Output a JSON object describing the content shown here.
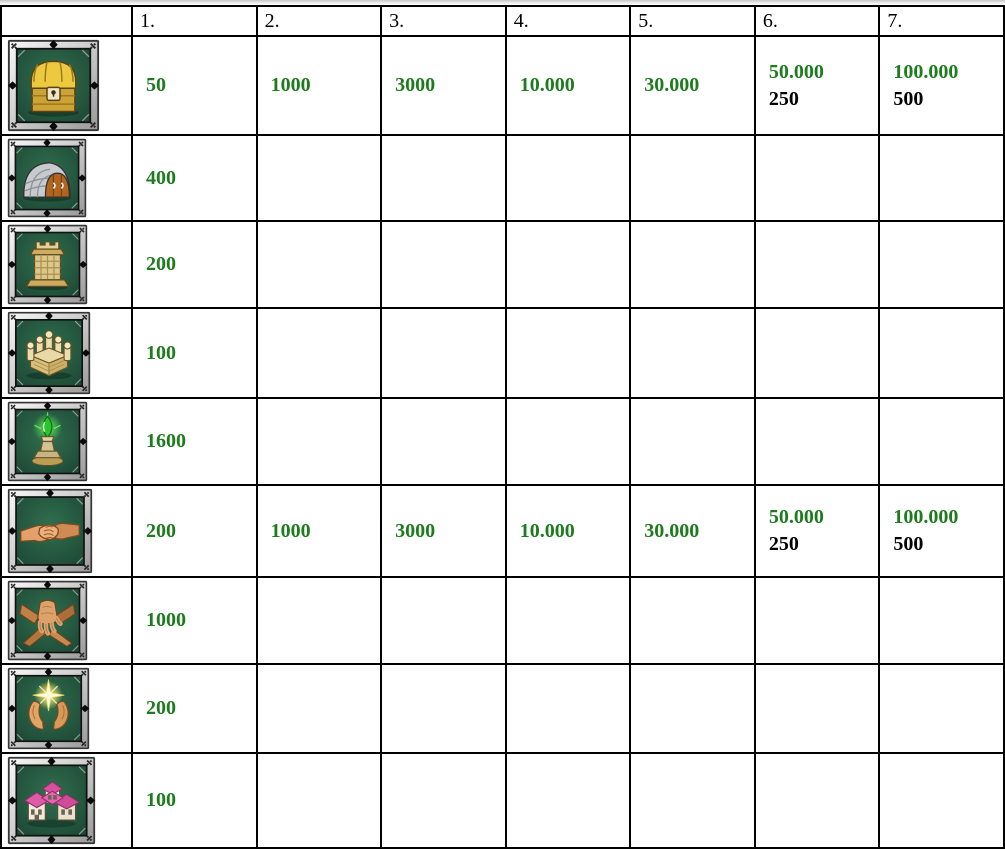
{
  "colors": {
    "value_green": "#1e7b1e",
    "value_black": "#000000",
    "grid_line": "#000000"
  },
  "table": {
    "header": [
      "",
      "1.",
      "2.",
      "3.",
      "4.",
      "5.",
      "6.",
      "7."
    ],
    "rows": [
      {
        "icon": "treasure-chest-icon",
        "cells": [
          {
            "green": "50"
          },
          {
            "green": "1000"
          },
          {
            "green": "3000"
          },
          {
            "green": "10.000"
          },
          {
            "green": "30.000"
          },
          {
            "green": "50.000",
            "black": "250"
          },
          {
            "green": "100.000",
            "black": "500"
          }
        ]
      },
      {
        "icon": "stone-vault-icon",
        "cells": [
          {
            "green": "400"
          },
          {},
          {},
          {},
          {},
          {},
          {}
        ]
      },
      {
        "icon": "fortress-gate-icon",
        "cells": [
          {
            "green": "200"
          },
          {},
          {},
          {},
          {},
          {},
          {}
        ]
      },
      {
        "icon": "castle-icon",
        "cells": [
          {
            "green": "100"
          },
          {},
          {},
          {},
          {},
          {},
          {}
        ]
      },
      {
        "icon": "green-orb-pedestal-icon",
        "cells": [
          {
            "green": "1600"
          },
          {},
          {},
          {},
          {},
          {},
          {}
        ]
      },
      {
        "icon": "handshake-icon",
        "cells": [
          {
            "green": "200"
          },
          {
            "green": "1000"
          },
          {
            "green": "3000"
          },
          {
            "green": "10.000"
          },
          {
            "green": "30.000"
          },
          {
            "green": "50.000",
            "black": "250"
          },
          {
            "green": "100.000",
            "black": "500"
          }
        ]
      },
      {
        "icon": "stacked-hands-icon",
        "cells": [
          {
            "green": "1000"
          },
          {},
          {},
          {},
          {},
          {},
          {}
        ]
      },
      {
        "icon": "hands-holding-light-icon",
        "cells": [
          {
            "green": "200"
          },
          {},
          {},
          {},
          {},
          {},
          {}
        ]
      },
      {
        "icon": "pink-roof-village-icon",
        "cells": [
          {
            "green": "100"
          },
          {},
          {},
          {},
          {},
          {},
          {}
        ]
      }
    ]
  }
}
